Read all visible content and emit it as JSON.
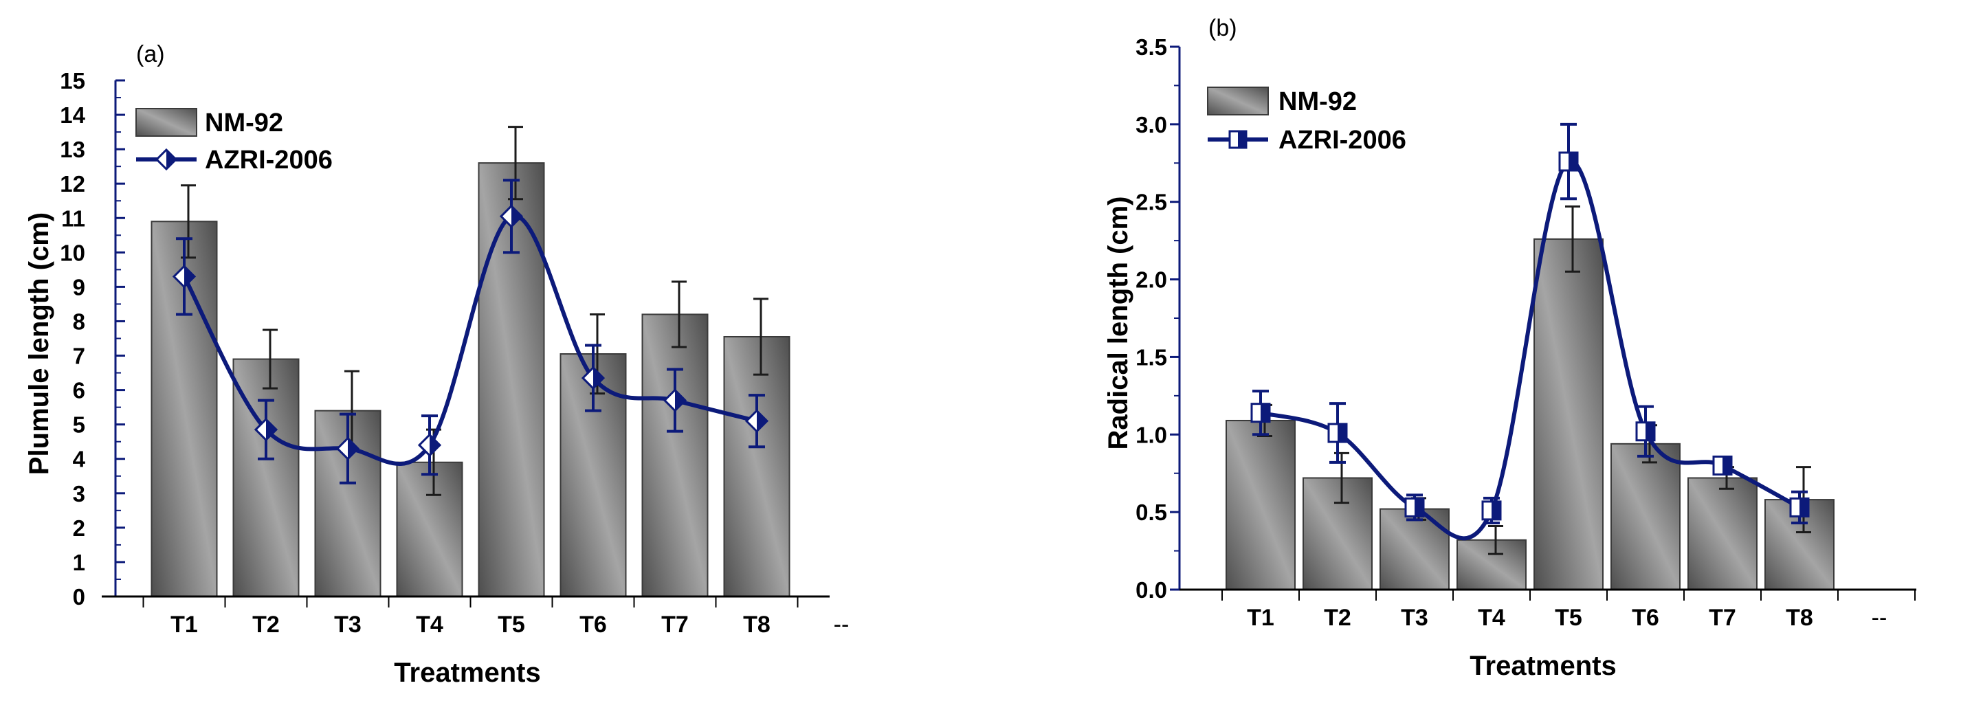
{
  "colors": {
    "bar_light": "#a9a9a9",
    "bar_dark": "#5a5a5a",
    "bar_edge": "#3a3a3a",
    "line": "#0c1a7a",
    "error_bar": "#1b1b1b",
    "axis_a": "#0c1a7a",
    "axis_b": "#0c1a7a",
    "text": "#000000"
  },
  "chart_data": [
    {
      "id": "a",
      "panel_label": "(a)",
      "type": "bar+line",
      "title": "",
      "xlabel": "Treatments",
      "ylabel": "Plumule length (cm)",
      "categories": [
        "T1",
        "T2",
        "T3",
        "T4",
        "T5",
        "T6",
        "T7",
        "T8"
      ],
      "extra_tick_label": "--",
      "ylim": [
        0,
        15
      ],
      "yticks": [
        0,
        1,
        2,
        3,
        4,
        5,
        6,
        7,
        8,
        9,
        10,
        11,
        12,
        13,
        14,
        15
      ],
      "ytick_labels": [
        "0",
        "1",
        "2",
        "3",
        "4",
        "5",
        "6",
        "7",
        "8",
        "9",
        "10",
        "11",
        "12",
        "13",
        "14",
        "15"
      ],
      "legend_position": "top-left",
      "series": [
        {
          "name": "NM-92",
          "kind": "bar",
          "values": [
            10.9,
            6.9,
            5.4,
            3.9,
            12.6,
            7.05,
            8.2,
            7.55
          ],
          "errors": [
            1.05,
            0.85,
            1.15,
            0.95,
            1.05,
            1.15,
            0.95,
            1.1
          ]
        },
        {
          "name": "AZRI-2006",
          "kind": "line",
          "marker": "diamond",
          "values": [
            9.3,
            4.85,
            4.3,
            4.4,
            11.05,
            6.35,
            5.7,
            5.1
          ],
          "errors": [
            1.1,
            0.85,
            1.0,
            0.85,
            1.05,
            0.95,
            0.9,
            0.75
          ]
        }
      ]
    },
    {
      "id": "b",
      "panel_label": "(b)",
      "type": "bar+line",
      "title": "",
      "xlabel": "Treatments",
      "ylabel": "Radical length (cm)",
      "categories": [
        "T1",
        "T2",
        "T3",
        "T4",
        "T5",
        "T6",
        "T7",
        "T8"
      ],
      "extra_tick_label": "--",
      "ylim": [
        0,
        3.5
      ],
      "yticks": [
        0,
        0.5,
        1.0,
        1.5,
        2.0,
        2.5,
        3.0,
        3.5
      ],
      "ytick_labels": [
        "0.0",
        "0.5",
        "1.0",
        "1.5",
        "2.0",
        "2.5",
        "3.0",
        "3.5"
      ],
      "legend_position": "top-left",
      "series": [
        {
          "name": "NM-92",
          "kind": "bar",
          "values": [
            1.09,
            0.72,
            0.52,
            0.32,
            2.26,
            0.94,
            0.72,
            0.58
          ],
          "errors": [
            0.1,
            0.16,
            0.07,
            0.09,
            0.21,
            0.12,
            0.07,
            0.21
          ]
        },
        {
          "name": "AZRI-2006",
          "kind": "line",
          "marker": "square",
          "values": [
            1.14,
            1.01,
            0.53,
            0.51,
            2.76,
            1.02,
            0.8,
            0.53
          ],
          "errors": [
            0.14,
            0.19,
            0.08,
            0.08,
            0.24,
            0.16,
            0.05,
            0.1
          ]
        }
      ]
    }
  ]
}
